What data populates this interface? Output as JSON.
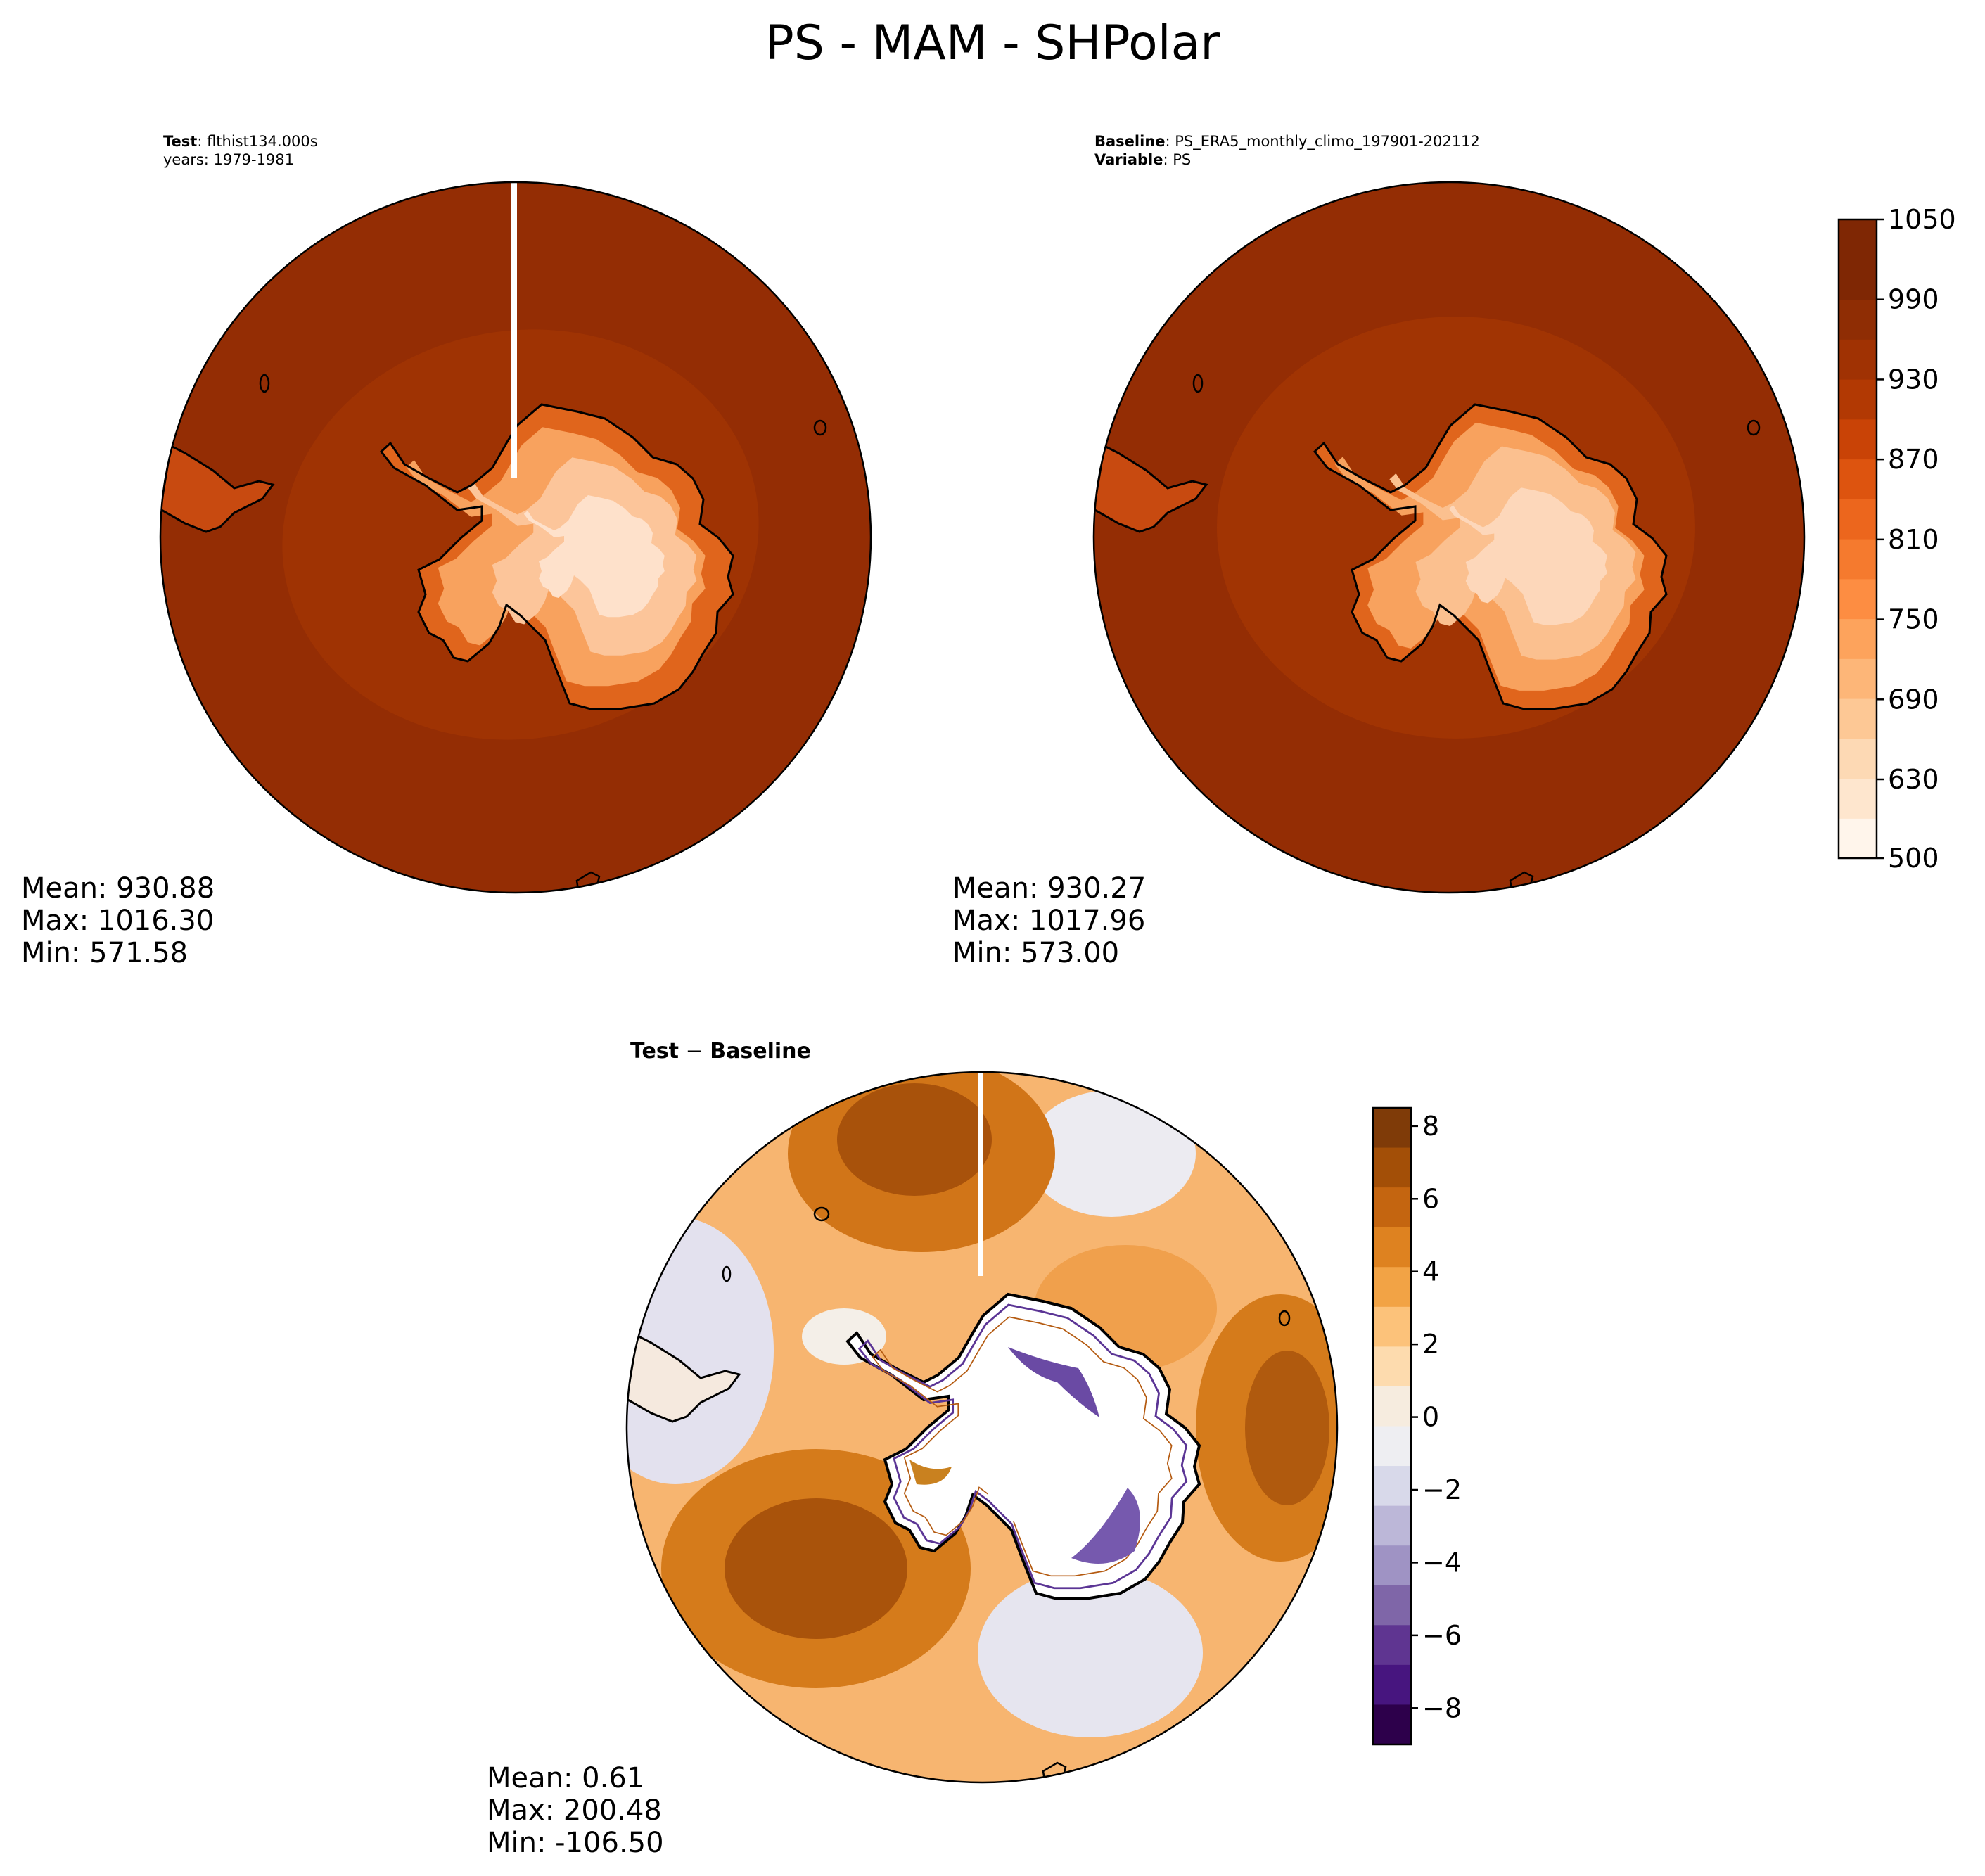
{
  "title": "PS - MAM - SHPolar",
  "colors": {
    "ocean_test": "#9a2f04",
    "plateau": "#fde6d2",
    "coast": "#000000",
    "diff_pos": "#d97c16",
    "diff_neg": "#8874b5"
  },
  "test_panel": {
    "label_bold": "Test",
    "label_rest": ": flthist134.000s",
    "years": "years: 1979-1981",
    "mean": "Mean: 930.88",
    "max": "Max: 1016.30",
    "min": "Min: 571.58"
  },
  "baseline_panel": {
    "label_bold": "Baseline",
    "label_rest": ": PS_ERA5_monthly_climo_197901-202112",
    "var_bold": "Variable",
    "var_rest": ": PS",
    "mean": "Mean: 930.27",
    "max": "Max: 1017.96",
    "min": "Min: 573.00"
  },
  "diff_panel": {
    "title_a": "Test",
    "title_op": " − ",
    "title_b": "Baseline",
    "mean": "Mean:  0.61",
    "max": "Max: 200.48",
    "min": "Min: -106.50"
  },
  "colorbar_main": {
    "ticks": [
      "500",
      "630",
      "690",
      "750",
      "810",
      "870",
      "930",
      "990",
      "1050"
    ],
    "colors": [
      "#fff5eb",
      "#fee6ce",
      "#fdd9b4",
      "#fdc895",
      "#fdb678",
      "#fda35c",
      "#fd8d42",
      "#f57a2e",
      "#ec661d",
      "#dd540f",
      "#c94306",
      "#b23903",
      "#a03203",
      "#8f2d04",
      "#7f2704",
      "#7f2704"
    ]
  },
  "colorbar_diff": {
    "ticks": [
      "8",
      "6",
      "4",
      "2",
      "0",
      "−2",
      "−4",
      "−6",
      "−8"
    ],
    "colors": [
      "#7f3b08",
      "#a34f07",
      "#c46510",
      "#de8220",
      "#f2a345",
      "#fcc27a",
      "#fddbae",
      "#f6ecdf",
      "#eeeef2",
      "#d8d9ea",
      "#bcb7d8",
      "#9f93c4",
      "#7f66a8",
      "#5f3591",
      "#47157f",
      "#2d004b"
    ]
  },
  "chart_data": {
    "type": "heatmap",
    "projection": "south polar stereographic",
    "variable": "PS",
    "season": "MAM",
    "region": "SHPolar",
    "panels": [
      {
        "name": "Test",
        "case": "flthist134.000s",
        "years": "1979-1981",
        "mean": 930.88,
        "max": 1016.3,
        "min": 571.58
      },
      {
        "name": "Baseline",
        "case": "PS_ERA5_monthly_climo_197901-202112",
        "mean": 930.27,
        "max": 1017.96,
        "min": 573.0
      },
      {
        "name": "Test − Baseline",
        "mean": 0.61,
        "max": 200.48,
        "min": -106.5
      }
    ],
    "colorbar_main": {
      "range": [
        500,
        1050
      ],
      "ticks": [
        500,
        630,
        690,
        750,
        810,
        870,
        930,
        990,
        1050
      ]
    },
    "colorbar_diff": {
      "range": [
        -9,
        8.5
      ],
      "ticks": [
        -8,
        -6,
        -4,
        -2,
        0,
        2,
        4,
        6,
        8
      ]
    }
  }
}
